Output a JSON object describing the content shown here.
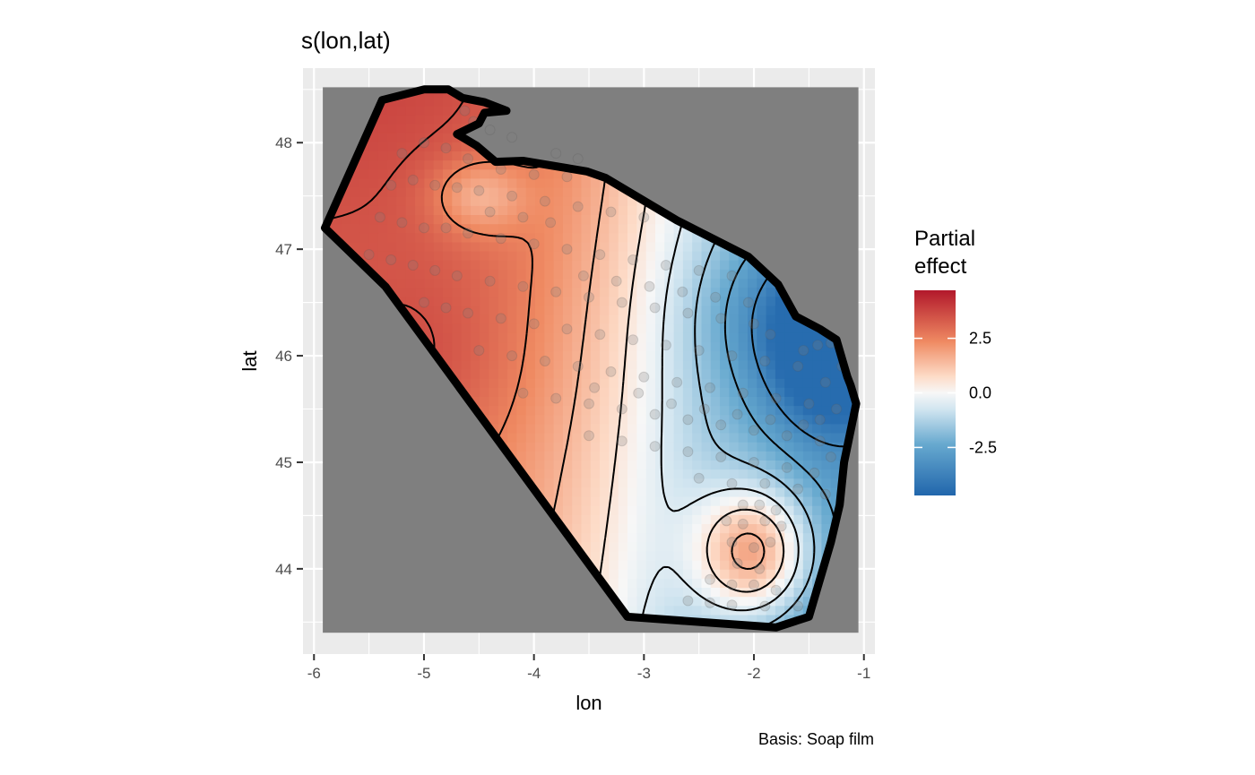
{
  "chart_data": {
    "type": "heatmap",
    "title": "s(lon,lat)",
    "xlabel": "lon",
    "ylabel": "lat",
    "caption": "Basis: Soap film",
    "xlim": [
      -6.1,
      -0.9
    ],
    "ylim": [
      43.2,
      48.7
    ],
    "x_ticks": [
      -6,
      -5,
      -4,
      -3,
      -2,
      -1
    ],
    "y_ticks": [
      44,
      45,
      46,
      47,
      48
    ],
    "x_tick_labels": [
      "-6",
      "-5",
      "-4",
      "-3",
      "-2",
      "-1"
    ],
    "y_tick_labels": [
      "44",
      "45",
      "46",
      "47",
      "48"
    ],
    "grid": true,
    "legend": {
      "title_line1": "Partial",
      "title_line2": "effect",
      "position": "right",
      "limits": [
        -4.7,
        4.7
      ],
      "ticks": [
        2.5,
        0.0,
        -2.5
      ],
      "tick_labels": [
        "2.5",
        "0.0",
        "-2.5"
      ]
    },
    "colors": {
      "panel_bg": "#ebebeb",
      "grid": "#ffffff",
      "outside_region": "#7f7f7f",
      "low": "#2166ac",
      "mid": "#f7f7f7",
      "high": "#b2182b",
      "boundary": "#000000",
      "points": "#808080"
    },
    "surface": {
      "base_terms": [
        {
          "coef": 3.0,
          "ref_lon": -3.0,
          "scale": 1.2
        },
        {
          "coef": 0.3,
          "ref_lat": 45.5,
          "scale": 1.0
        }
      ],
      "bumps": [
        {
          "lon": -1.28,
          "lat": 46.1,
          "amp": -3.8,
          "sx": 0.35,
          "sy": 0.5
        },
        {
          "lon": -1.75,
          "lat": 46.4,
          "amp": -1.5,
          "sx": 0.6,
          "sy": 0.6
        },
        {
          "lon": -2.0,
          "lat": 44.15,
          "amp": 4.2,
          "sx": 0.38,
          "sy": 0.45
        },
        {
          "lon": -4.5,
          "lat": 47.5,
          "amp": -1.6,
          "sx": 0.3,
          "sy": 0.25
        },
        {
          "lon": -5.0,
          "lat": 45.9,
          "amp": 0.6,
          "sx": 0.6,
          "sy": 0.6
        }
      ],
      "clamp": [
        -4.5,
        4.5
      ],
      "contour_levels": [
        -3.5,
        -2.5,
        -1.5,
        -0.5,
        0.5,
        1.5,
        2.5,
        3.5
      ]
    },
    "boundary": [
      [
        -5.9,
        47.2
      ],
      [
        -5.38,
        48.4
      ],
      [
        -5.0,
        48.5
      ],
      [
        -4.78,
        48.5
      ],
      [
        -4.65,
        48.42
      ],
      [
        -4.45,
        48.38
      ],
      [
        -4.25,
        48.3
      ],
      [
        -4.45,
        48.28
      ],
      [
        -4.5,
        48.18
      ],
      [
        -4.7,
        48.08
      ],
      [
        -4.65,
        48.05
      ],
      [
        -4.52,
        47.97
      ],
      [
        -4.35,
        47.82
      ],
      [
        -4.1,
        47.83
      ],
      [
        -3.52,
        47.73
      ],
      [
        -3.35,
        47.67
      ],
      [
        -2.7,
        47.27
      ],
      [
        -2.05,
        46.93
      ],
      [
        -1.78,
        46.67
      ],
      [
        -1.62,
        46.37
      ],
      [
        -1.4,
        46.25
      ],
      [
        -1.25,
        46.15
      ],
      [
        -1.15,
        45.8
      ],
      [
        -1.12,
        45.72
      ],
      [
        -1.07,
        45.55
      ],
      [
        -1.18,
        45.0
      ],
      [
        -1.22,
        44.6
      ],
      [
        -1.3,
        44.25
      ],
      [
        -1.5,
        43.55
      ],
      [
        -1.65,
        43.5
      ],
      [
        -1.8,
        43.45
      ],
      [
        -3.15,
        43.55
      ],
      [
        -5.35,
        46.65
      ],
      [
        -5.6,
        46.9
      ]
    ],
    "points": [
      [
        -4.63,
        48.3
      ],
      [
        -4.55,
        48.2
      ],
      [
        -4.4,
        48.12
      ],
      [
        -4.2,
        48.05
      ],
      [
        -3.8,
        47.9
      ],
      [
        -3.6,
        47.85
      ],
      [
        -5.2,
        47.9
      ],
      [
        -5.0,
        48.0
      ],
      [
        -4.8,
        47.95
      ],
      [
        -4.6,
        47.85
      ],
      [
        -4.3,
        47.75
      ],
      [
        -4.0,
        47.7
      ],
      [
        -3.7,
        47.68
      ],
      [
        -5.3,
        47.6
      ],
      [
        -5.1,
        47.65
      ],
      [
        -4.9,
        47.6
      ],
      [
        -4.7,
        47.58
      ],
      [
        -4.5,
        47.55
      ],
      [
        -4.2,
        47.5
      ],
      [
        -3.9,
        47.45
      ],
      [
        -3.6,
        47.4
      ],
      [
        -3.3,
        47.35
      ],
      [
        -3.0,
        47.3
      ],
      [
        -5.4,
        47.3
      ],
      [
        -5.2,
        47.25
      ],
      [
        -5.0,
        47.2
      ],
      [
        -4.8,
        47.2
      ],
      [
        -4.6,
        47.15
      ],
      [
        -4.3,
        47.1
      ],
      [
        -4.0,
        47.05
      ],
      [
        -3.7,
        47.0
      ],
      [
        -3.4,
        46.95
      ],
      [
        -3.1,
        46.9
      ],
      [
        -2.8,
        46.85
      ],
      [
        -2.5,
        46.8
      ],
      [
        -2.2,
        46.75
      ],
      [
        -5.5,
        46.95
      ],
      [
        -5.3,
        46.9
      ],
      [
        -5.1,
        46.85
      ],
      [
        -4.9,
        46.8
      ],
      [
        -4.7,
        46.75
      ],
      [
        -4.4,
        46.7
      ],
      [
        -4.1,
        46.65
      ],
      [
        -3.8,
        46.6
      ],
      [
        -3.5,
        46.55
      ],
      [
        -3.2,
        46.5
      ],
      [
        -2.9,
        46.45
      ],
      [
        -2.6,
        46.4
      ],
      [
        -2.3,
        46.35
      ],
      [
        -2.0,
        46.3
      ],
      [
        -5.0,
        46.5
      ],
      [
        -4.8,
        46.45
      ],
      [
        -4.6,
        46.4
      ],
      [
        -4.3,
        46.35
      ],
      [
        -4.0,
        46.3
      ],
      [
        -3.7,
        46.25
      ],
      [
        -3.4,
        46.2
      ],
      [
        -3.1,
        46.15
      ],
      [
        -2.8,
        46.1
      ],
      [
        -2.5,
        46.05
      ],
      [
        -2.2,
        46.0
      ],
      [
        -1.9,
        45.95
      ],
      [
        -1.6,
        45.9
      ],
      [
        -4.5,
        46.05
      ],
      [
        -4.2,
        46.0
      ],
      [
        -3.9,
        45.95
      ],
      [
        -3.6,
        45.9
      ],
      [
        -3.3,
        45.85
      ],
      [
        -3.0,
        45.8
      ],
      [
        -2.7,
        45.75
      ],
      [
        -2.4,
        45.7
      ],
      [
        -2.1,
        45.65
      ],
      [
        -1.8,
        45.6
      ],
      [
        -1.5,
        45.55
      ],
      [
        -4.1,
        45.65
      ],
      [
        -3.8,
        45.6
      ],
      [
        -3.5,
        45.55
      ],
      [
        -3.2,
        45.5
      ],
      [
        -2.9,
        45.45
      ],
      [
        -2.6,
        45.4
      ],
      [
        -2.3,
        45.35
      ],
      [
        -2.0,
        45.3
      ],
      [
        -1.7,
        45.25
      ],
      [
        -1.4,
        45.2
      ],
      [
        -3.5,
        45.25
      ],
      [
        -3.2,
        45.2
      ],
      [
        -2.9,
        45.15
      ],
      [
        -2.6,
        45.1
      ],
      [
        -2.3,
        45.05
      ],
      [
        -2.0,
        45.0
      ],
      [
        -1.7,
        44.95
      ],
      [
        -1.45,
        44.9
      ],
      [
        -2.5,
        44.85
      ],
      [
        -2.2,
        44.8
      ],
      [
        -1.9,
        44.8
      ],
      [
        -1.6,
        44.75
      ],
      [
        -2.1,
        44.6
      ],
      [
        -1.95,
        44.6
      ],
      [
        -1.8,
        44.55
      ],
      [
        -2.25,
        44.45
      ],
      [
        -2.1,
        44.42
      ],
      [
        -1.9,
        44.45
      ],
      [
        -1.75,
        44.4
      ],
      [
        -2.2,
        44.25
      ],
      [
        -2.0,
        44.2
      ],
      [
        -1.85,
        44.25
      ],
      [
        -2.15,
        44.05
      ],
      [
        -1.95,
        44.0
      ],
      [
        -2.4,
        43.9
      ],
      [
        -2.2,
        43.85
      ],
      [
        -2.0,
        43.85
      ],
      [
        -1.8,
        43.8
      ],
      [
        -2.6,
        43.7
      ],
      [
        -2.4,
        43.68
      ],
      [
        -2.2,
        43.66
      ],
      [
        -1.9,
        43.65
      ],
      [
        -1.6,
        43.65
      ],
      [
        -1.42,
        46.1
      ],
      [
        -1.3,
        46.12
      ],
      [
        -1.2,
        45.9
      ],
      [
        -1.35,
        45.75
      ],
      [
        -1.25,
        45.5
      ],
      [
        -1.4,
        45.4
      ],
      [
        -1.3,
        45.05
      ],
      [
        -1.35,
        44.7
      ],
      [
        -3.85,
        47.25
      ],
      [
        -4.1,
        47.3
      ],
      [
        -4.4,
        47.35
      ],
      [
        -3.55,
        46.75
      ],
      [
        -3.25,
        46.7
      ],
      [
        -2.95,
        46.65
      ],
      [
        -2.65,
        46.6
      ],
      [
        -2.35,
        46.55
      ],
      [
        -2.05,
        46.5
      ],
      [
        -1.85,
        46.2
      ],
      [
        -1.55,
        46.05
      ],
      [
        -3.45,
        45.7
      ],
      [
        -3.05,
        45.65
      ],
      [
        -2.75,
        45.55
      ],
      [
        -2.45,
        45.5
      ],
      [
        -2.15,
        45.45
      ],
      [
        -1.85,
        45.4
      ],
      [
        -1.55,
        45.35
      ]
    ]
  }
}
